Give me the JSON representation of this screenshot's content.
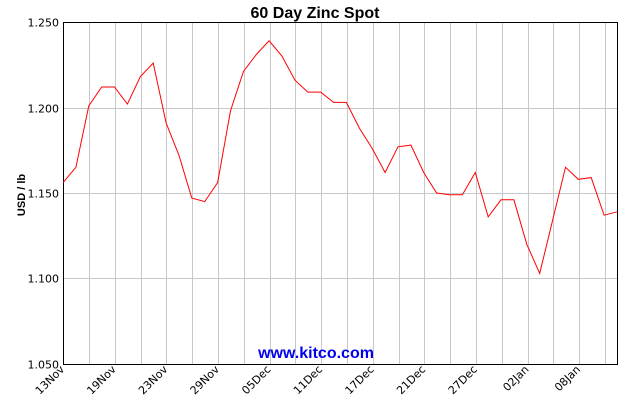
{
  "chart_data": {
    "type": "line",
    "title": "60 Day Zinc Spot",
    "ylabel": "USD / lb",
    "xlabel": "",
    "ylim": [
      1.05,
      1.25
    ],
    "yticks": [
      "1.050",
      "1.100",
      "1.150",
      "1.200",
      "1.250"
    ],
    "xtick_labels": [
      "13Nov",
      "19Nov",
      "23Nov",
      "29Nov",
      "05Dec",
      "11Dec",
      "17Dec",
      "21Dec",
      "27Dec",
      "02Jan",
      "08Jan"
    ],
    "grid": true,
    "watermark": "www.kitco.com",
    "series": [
      {
        "color": "#ff0000",
        "values": [
          1.156,
          1.165,
          1.201,
          1.212,
          1.212,
          1.202,
          1.218,
          1.226,
          1.191,
          1.172,
          1.147,
          1.145,
          1.156,
          1.198,
          1.221,
          1.231,
          1.239,
          1.23,
          1.216,
          1.209,
          1.209,
          1.203,
          1.203,
          1.188,
          1.176,
          1.162,
          1.177,
          1.178,
          1.162,
          1.15,
          1.149,
          1.149,
          1.162,
          1.136,
          1.146,
          1.146,
          1.12,
          1.103,
          1.134,
          1.165,
          1.158,
          1.159,
          1.137,
          1.139
        ]
      }
    ]
  }
}
